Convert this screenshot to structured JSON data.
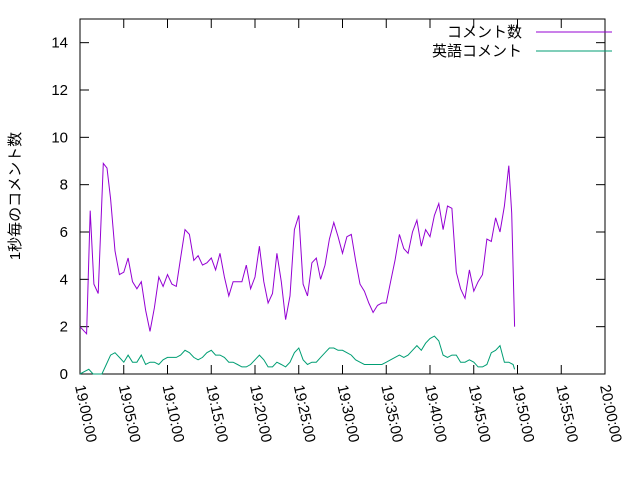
{
  "chart_data": {
    "type": "line",
    "ylabel": "1秒毎のコメント数",
    "xlabel": "",
    "ylim": [
      0,
      15
    ],
    "yticks": [
      0,
      2,
      4,
      6,
      8,
      10,
      12,
      14
    ],
    "xlim": [
      "19:00:00",
      "20:00:00"
    ],
    "xticks": [
      "19:00:00",
      "19:05:00",
      "19:10:00",
      "19:15:00",
      "19:20:00",
      "19:25:00",
      "19:30:00",
      "19:35:00",
      "19:40:00",
      "19:45:00",
      "19:50:00",
      "19:55:00",
      "20:00:00"
    ],
    "grid": false,
    "legend": "top-right",
    "series": [
      {
        "name": "コメント数",
        "color": "#9400d3",
        "points": [
          [
            "19:00:00",
            2.0
          ],
          [
            "19:00:45",
            1.7
          ],
          [
            "19:01:10",
            6.9
          ],
          [
            "19:01:35",
            3.8
          ],
          [
            "19:02:05",
            3.4
          ],
          [
            "19:02:40",
            8.9
          ],
          [
            "19:03:05",
            8.7
          ],
          [
            "19:03:30",
            7.4
          ],
          [
            "19:04:00",
            5.2
          ],
          [
            "19:04:30",
            4.2
          ],
          [
            "19:05:00",
            4.3
          ],
          [
            "19:05:30",
            4.9
          ],
          [
            "19:06:00",
            3.9
          ],
          [
            "19:06:30",
            3.6
          ],
          [
            "19:07:00",
            3.9
          ],
          [
            "19:07:30",
            2.7
          ],
          [
            "19:08:00",
            1.8
          ],
          [
            "19:08:30",
            2.8
          ],
          [
            "19:09:00",
            4.1
          ],
          [
            "19:09:30",
            3.7
          ],
          [
            "19:10:00",
            4.2
          ],
          [
            "19:10:30",
            3.8
          ],
          [
            "19:11:00",
            3.7
          ],
          [
            "19:11:30",
            4.9
          ],
          [
            "19:12:00",
            6.1
          ],
          [
            "19:12:30",
            5.9
          ],
          [
            "19:13:00",
            4.8
          ],
          [
            "19:13:30",
            5.0
          ],
          [
            "19:14:00",
            4.6
          ],
          [
            "19:14:30",
            4.7
          ],
          [
            "19:15:00",
            4.9
          ],
          [
            "19:15:30",
            4.4
          ],
          [
            "19:16:00",
            5.1
          ],
          [
            "19:16:30",
            4.1
          ],
          [
            "19:17:00",
            3.3
          ],
          [
            "19:17:30",
            3.9
          ],
          [
            "19:18:00",
            3.9
          ],
          [
            "19:18:30",
            3.9
          ],
          [
            "19:19:00",
            4.6
          ],
          [
            "19:19:30",
            3.6
          ],
          [
            "19:20:00",
            4.1
          ],
          [
            "19:20:30",
            5.4
          ],
          [
            "19:21:00",
            3.9
          ],
          [
            "19:21:30",
            3.0
          ],
          [
            "19:22:00",
            3.4
          ],
          [
            "19:22:30",
            5.1
          ],
          [
            "19:23:00",
            3.9
          ],
          [
            "19:23:30",
            2.3
          ],
          [
            "19:24:00",
            3.3
          ],
          [
            "19:24:30",
            6.1
          ],
          [
            "19:25:00",
            6.7
          ],
          [
            "19:25:30",
            3.8
          ],
          [
            "19:26:00",
            3.3
          ],
          [
            "19:26:30",
            4.7
          ],
          [
            "19:27:00",
            4.9
          ],
          [
            "19:27:30",
            4.0
          ],
          [
            "19:28:00",
            4.6
          ],
          [
            "19:28:30",
            5.7
          ],
          [
            "19:29:00",
            6.4
          ],
          [
            "19:29:30",
            5.8
          ],
          [
            "19:30:00",
            5.1
          ],
          [
            "19:30:30",
            5.8
          ],
          [
            "19:31:00",
            5.9
          ],
          [
            "19:31:30",
            4.8
          ],
          [
            "19:32:00",
            3.8
          ],
          [
            "19:32:30",
            3.5
          ],
          [
            "19:33:00",
            3.0
          ],
          [
            "19:33:30",
            2.6
          ],
          [
            "19:34:00",
            2.9
          ],
          [
            "19:34:30",
            3.0
          ],
          [
            "19:35:00",
            3.0
          ],
          [
            "19:35:30",
            3.9
          ],
          [
            "19:36:00",
            4.8
          ],
          [
            "19:36:30",
            5.9
          ],
          [
            "19:37:00",
            5.3
          ],
          [
            "19:37:30",
            5.1
          ],
          [
            "19:38:00",
            6.0
          ],
          [
            "19:38:30",
            6.5
          ],
          [
            "19:39:00",
            5.4
          ],
          [
            "19:39:30",
            6.1
          ],
          [
            "19:40:00",
            5.8
          ],
          [
            "19:40:30",
            6.7
          ],
          [
            "19:41:00",
            7.2
          ],
          [
            "19:41:30",
            6.1
          ],
          [
            "19:42:00",
            7.1
          ],
          [
            "19:42:30",
            7.0
          ],
          [
            "19:43:00",
            4.3
          ],
          [
            "19:43:30",
            3.6
          ],
          [
            "19:44:00",
            3.2
          ],
          [
            "19:44:30",
            4.4
          ],
          [
            "19:45:00",
            3.5
          ],
          [
            "19:45:30",
            3.9
          ],
          [
            "19:46:00",
            4.2
          ],
          [
            "19:46:30",
            5.7
          ],
          [
            "19:47:00",
            5.6
          ],
          [
            "19:47:30",
            6.6
          ],
          [
            "19:48:00",
            6.0
          ],
          [
            "19:48:30",
            7.1
          ],
          [
            "19:49:00",
            8.8
          ],
          [
            "19:49:20",
            6.8
          ],
          [
            "19:49:40",
            2.0
          ]
        ]
      },
      {
        "name": "英語コメント",
        "color": "#009e73",
        "points": [
          [
            "19:00:00",
            0.0
          ],
          [
            "19:00:30",
            0.1
          ],
          [
            "19:01:00",
            0.2
          ],
          [
            "19:01:30",
            0.0
          ],
          [
            "19:02:00",
            0.0
          ],
          [
            "19:02:30",
            0.0
          ],
          [
            "19:03:00",
            0.4
          ],
          [
            "19:03:30",
            0.8
          ],
          [
            "19:04:00",
            0.9
          ],
          [
            "19:04:30",
            0.7
          ],
          [
            "19:05:00",
            0.5
          ],
          [
            "19:05:30",
            0.8
          ],
          [
            "19:06:00",
            0.5
          ],
          [
            "19:06:30",
            0.5
          ],
          [
            "19:07:00",
            0.8
          ],
          [
            "19:07:30",
            0.4
          ],
          [
            "19:08:00",
            0.5
          ],
          [
            "19:08:30",
            0.5
          ],
          [
            "19:09:00",
            0.4
          ],
          [
            "19:09:30",
            0.6
          ],
          [
            "19:10:00",
            0.7
          ],
          [
            "19:10:30",
            0.7
          ],
          [
            "19:11:00",
            0.7
          ],
          [
            "19:11:30",
            0.8
          ],
          [
            "19:12:00",
            1.0
          ],
          [
            "19:12:30",
            0.9
          ],
          [
            "19:13:00",
            0.7
          ],
          [
            "19:13:30",
            0.6
          ],
          [
            "19:14:00",
            0.7
          ],
          [
            "19:14:30",
            0.9
          ],
          [
            "19:15:00",
            1.0
          ],
          [
            "19:15:30",
            0.8
          ],
          [
            "19:16:00",
            0.8
          ],
          [
            "19:16:30",
            0.7
          ],
          [
            "19:17:00",
            0.5
          ],
          [
            "19:17:30",
            0.5
          ],
          [
            "19:18:00",
            0.4
          ],
          [
            "19:18:30",
            0.3
          ],
          [
            "19:19:00",
            0.3
          ],
          [
            "19:19:30",
            0.4
          ],
          [
            "19:20:00",
            0.6
          ],
          [
            "19:20:30",
            0.8
          ],
          [
            "19:21:00",
            0.6
          ],
          [
            "19:21:30",
            0.3
          ],
          [
            "19:22:00",
            0.3
          ],
          [
            "19:22:30",
            0.5
          ],
          [
            "19:23:00",
            0.4
          ],
          [
            "19:23:30",
            0.3
          ],
          [
            "19:24:00",
            0.5
          ],
          [
            "19:24:30",
            0.9
          ],
          [
            "19:25:00",
            1.1
          ],
          [
            "19:25:30",
            0.6
          ],
          [
            "19:26:00",
            0.4
          ],
          [
            "19:26:30",
            0.5
          ],
          [
            "19:27:00",
            0.5
          ],
          [
            "19:27:30",
            0.7
          ],
          [
            "19:28:00",
            0.9
          ],
          [
            "19:28:30",
            1.1
          ],
          [
            "19:29:00",
            1.1
          ],
          [
            "19:29:30",
            1.0
          ],
          [
            "19:30:00",
            1.0
          ],
          [
            "19:30:30",
            0.9
          ],
          [
            "19:31:00",
            0.8
          ],
          [
            "19:31:30",
            0.6
          ],
          [
            "19:32:00",
            0.5
          ],
          [
            "19:32:30",
            0.4
          ],
          [
            "19:33:00",
            0.4
          ],
          [
            "19:33:30",
            0.4
          ],
          [
            "19:34:00",
            0.4
          ],
          [
            "19:34:30",
            0.4
          ],
          [
            "19:35:00",
            0.5
          ],
          [
            "19:35:30",
            0.6
          ],
          [
            "19:36:00",
            0.7
          ],
          [
            "19:36:30",
            0.8
          ],
          [
            "19:37:00",
            0.7
          ],
          [
            "19:37:30",
            0.8
          ],
          [
            "19:38:00",
            1.0
          ],
          [
            "19:38:30",
            1.2
          ],
          [
            "19:39:00",
            1.0
          ],
          [
            "19:39:30",
            1.3
          ],
          [
            "19:40:00",
            1.5
          ],
          [
            "19:40:30",
            1.6
          ],
          [
            "19:41:00",
            1.4
          ],
          [
            "19:41:30",
            0.8
          ],
          [
            "19:42:00",
            0.7
          ],
          [
            "19:42:30",
            0.8
          ],
          [
            "19:43:00",
            0.8
          ],
          [
            "19:43:30",
            0.5
          ],
          [
            "19:44:00",
            0.5
          ],
          [
            "19:44:30",
            0.6
          ],
          [
            "19:45:00",
            0.5
          ],
          [
            "19:45:30",
            0.3
          ],
          [
            "19:46:00",
            0.3
          ],
          [
            "19:46:30",
            0.4
          ],
          [
            "19:47:00",
            0.9
          ],
          [
            "19:47:30",
            1.0
          ],
          [
            "19:48:00",
            1.2
          ],
          [
            "19:48:30",
            0.5
          ],
          [
            "19:49:00",
            0.5
          ],
          [
            "19:49:30",
            0.4
          ],
          [
            "19:49:40",
            0.2
          ]
        ]
      }
    ]
  }
}
